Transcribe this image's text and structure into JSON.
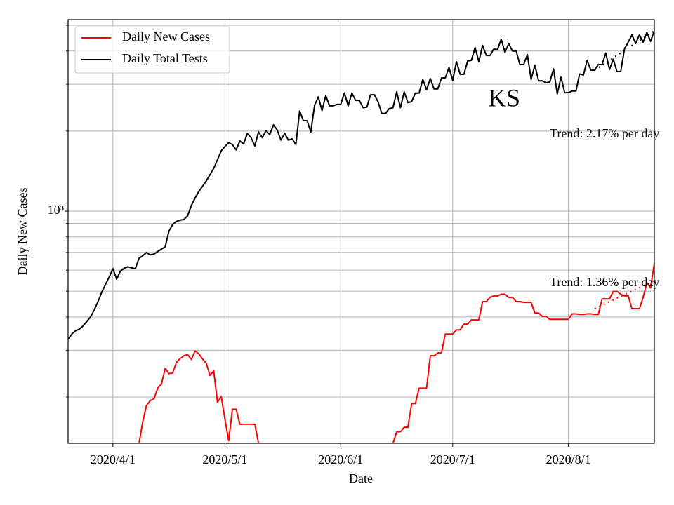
{
  "chart_data": {
    "type": "line",
    "title": "KS",
    "x_label": "Date",
    "y_label": "Daily New Cases",
    "y_scale": "log",
    "grid": true,
    "legend": "upper left",
    "x": [
      "2020/3/20",
      "2020/3/21",
      "2020/3/22",
      "2020/3/23",
      "2020/3/24",
      "2020/3/25",
      "2020/3/26",
      "2020/3/27",
      "2020/3/28",
      "2020/3/29",
      "2020/3/30",
      "2020/3/31",
      "2020/4/1",
      "2020/4/2",
      "2020/4/3",
      "2020/4/4",
      "2020/4/5",
      "2020/4/6",
      "2020/4/7",
      "2020/4/8",
      "2020/4/9",
      "2020/4/10",
      "2020/4/11",
      "2020/4/12",
      "2020/4/13",
      "2020/4/14",
      "2020/4/15",
      "2020/4/16",
      "2020/4/17",
      "2020/4/18",
      "2020/4/19",
      "2020/4/20",
      "2020/4/21",
      "2020/4/22",
      "2020/4/23",
      "2020/4/24",
      "2020/4/25",
      "2020/4/26",
      "2020/4/27",
      "2020/4/28",
      "2020/4/29",
      "2020/4/30",
      "2020/5/1",
      "2020/5/2",
      "2020/5/3",
      "2020/5/4",
      "2020/5/5",
      "2020/5/6",
      "2020/5/7",
      "2020/5/8",
      "2020/5/9",
      "2020/5/10",
      "2020/5/11",
      "2020/5/12",
      "2020/5/13",
      "2020/5/14",
      "2020/5/15",
      "2020/5/16",
      "2020/5/17",
      "2020/5/18",
      "2020/5/19",
      "2020/5/20",
      "2020/5/21",
      "2020/5/22",
      "2020/5/23",
      "2020/5/24",
      "2020/5/25",
      "2020/5/26",
      "2020/5/27",
      "2020/5/28",
      "2020/5/29",
      "2020/5/30",
      "2020/5/31",
      "2020/6/1",
      "2020/6/2",
      "2020/6/3",
      "2020/6/4",
      "2020/6/5",
      "2020/6/6",
      "2020/6/7",
      "2020/6/8",
      "2020/6/9",
      "2020/6/10",
      "2020/6/11",
      "2020/6/12",
      "2020/6/13",
      "2020/6/14",
      "2020/6/15",
      "2020/6/16",
      "2020/6/17",
      "2020/6/18",
      "2020/6/19",
      "2020/6/20",
      "2020/6/21",
      "2020/6/22",
      "2020/6/23",
      "2020/6/24",
      "2020/6/25",
      "2020/6/26",
      "2020/6/27",
      "2020/6/28",
      "2020/6/29",
      "2020/6/30",
      "2020/7/1",
      "2020/7/2",
      "2020/7/3",
      "2020/7/4",
      "2020/7/5",
      "2020/7/6",
      "2020/7/7",
      "2020/7/8",
      "2020/7/9",
      "2020/7/10",
      "2020/7/11",
      "2020/7/12",
      "2020/7/13",
      "2020/7/14",
      "2020/7/15",
      "2020/7/16",
      "2020/7/17",
      "2020/7/18",
      "2020/7/19",
      "2020/7/20",
      "2020/7/21",
      "2020/7/22",
      "2020/7/23",
      "2020/7/24",
      "2020/7/25",
      "2020/7/26",
      "2020/7/27",
      "2020/7/28",
      "2020/7/29",
      "2020/7/30",
      "2020/7/31",
      "2020/8/1",
      "2020/8/2",
      "2020/8/3",
      "2020/8/4",
      "2020/8/5",
      "2020/8/6",
      "2020/8/7",
      "2020/8/8",
      "2020/8/9",
      "2020/8/10",
      "2020/8/11",
      "2020/8/12",
      "2020/8/13",
      "2020/8/14",
      "2020/8/15",
      "2020/8/16",
      "2020/8/17",
      "2020/8/18",
      "2020/8/19",
      "2020/8/20",
      "2020/8/21",
      "2020/8/22",
      "2020/8/23",
      "2020/8/24"
    ],
    "series": [
      {
        "name": "Daily New Cases",
        "color": "#ff0000",
        "values": [
          null,
          null,
          null,
          null,
          null,
          null,
          null,
          null,
          null,
          null,
          null,
          null,
          null,
          null,
          null,
          null,
          null,
          null,
          null,
          134,
          162,
          186,
          194,
          197,
          216,
          224,
          256,
          245,
          246,
          270,
          279,
          286,
          289,
          277,
          298,
          291,
          278,
          268,
          241,
          251,
          191,
          201,
          165,
          137,
          180,
          180,
          158,
          158,
          158,
          158,
          158,
          134,
          null,
          null,
          null,
          null,
          null,
          null,
          null,
          null,
          null,
          null,
          null,
          null,
          null,
          null,
          null,
          null,
          null,
          null,
          null,
          null,
          null,
          null,
          null,
          null,
          null,
          null,
          null,
          null,
          null,
          null,
          null,
          null,
          null,
          null,
          null,
          134,
          148,
          148,
          154,
          154,
          189,
          189,
          216,
          216,
          216,
          286,
          286,
          293,
          293,
          345,
          345,
          345,
          358,
          358,
          376,
          376,
          390,
          390,
          390,
          457,
          457,
          474,
          480,
          480,
          487,
          487,
          474,
          474,
          457,
          457,
          454,
          454,
          454,
          414,
          414,
          402,
          402,
          392,
          392,
          392,
          392,
          392,
          392,
          411,
          411,
          409,
          409,
          411,
          411,
          409,
          409,
          468,
          468,
          468,
          499,
          499,
          487,
          480,
          480,
          430,
          430,
          430,
          474,
          538,
          515,
          637
        ]
      },
      {
        "name": "Daily Total Tests",
        "color": "#000000",
        "values": [
          330,
          345,
          355,
          360,
          370,
          385,
          400,
          425,
          457,
          495,
          530,
          565,
          608,
          555,
          595,
          610,
          618,
          612,
          608,
          665,
          680,
          699,
          685,
          690,
          705,
          720,
          734,
          840,
          891,
          915,
          925,
          930,
          960,
          1050,
          1120,
          1185,
          1240,
          1300,
          1370,
          1450,
          1560,
          1685,
          1750,
          1810,
          1780,
          1700,
          1835,
          1790,
          1960,
          1890,
          1760,
          1985,
          1890,
          2010,
          1940,
          2110,
          2020,
          1850,
          1960,
          1850,
          1870,
          1780,
          2380,
          2190,
          2190,
          1985,
          2500,
          2690,
          2390,
          2720,
          2490,
          2490,
          2520,
          2520,
          2780,
          2490,
          2780,
          2610,
          2610,
          2450,
          2460,
          2740,
          2740,
          2580,
          2330,
          2330,
          2430,
          2450,
          2810,
          2450,
          2810,
          2560,
          2580,
          2780,
          2780,
          3130,
          2860,
          3150,
          2880,
          2880,
          3170,
          3170,
          3470,
          3100,
          3650,
          3270,
          3270,
          3670,
          3690,
          4120,
          3650,
          4200,
          3850,
          3850,
          4070,
          4050,
          4430,
          3950,
          4270,
          4000,
          4000,
          3560,
          3560,
          3880,
          3130,
          3540,
          3090,
          3090,
          3040,
          3060,
          3430,
          2760,
          3190,
          2790,
          2790,
          2830,
          2830,
          3280,
          3250,
          3690,
          3390,
          3390,
          3560,
          3560,
          3930,
          3410,
          3730,
          3350,
          3350,
          4070,
          4320,
          4600,
          4270,
          4600,
          4320,
          4700,
          4350,
          4770
        ]
      }
    ],
    "trend_lines": [
      {
        "label": "Trend: 2.17% per day",
        "color": "#000000",
        "x": [
          "2020/8/8",
          "2020/8/24"
        ],
        "values": [
          3390,
          4770
        ]
      },
      {
        "label": "Trend: 1.36% per day",
        "color": "#ff0000",
        "x": [
          "2020/8/8",
          "2020/8/24"
        ],
        "values": [
          430,
          548
        ]
      }
    ],
    "xlim": [
      "2020/3/20",
      "2020/8/24"
    ],
    "xticks": [
      "2020/4/1",
      "2020/5/1",
      "2020/6/1",
      "2020/7/1",
      "2020/8/1"
    ],
    "ylim": [
      134,
      5250
    ],
    "yticks": [
      {
        "value": 1000,
        "label": "10³"
      }
    ],
    "y_minor_ticks": [
      200,
      300,
      400,
      500,
      600,
      700,
      800,
      900,
      2000,
      3000,
      4000,
      5000
    ]
  }
}
